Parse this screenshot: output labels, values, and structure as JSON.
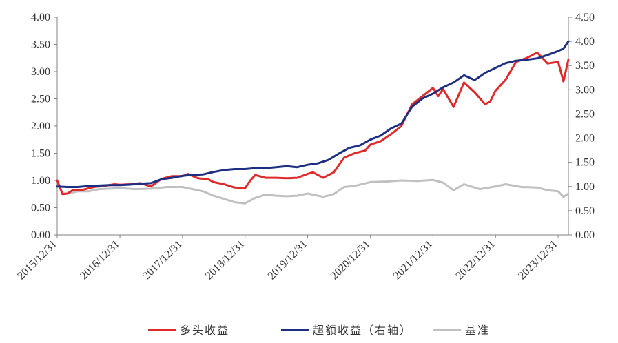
{
  "chart_data": {
    "type": "line",
    "title": "",
    "xlabel": "",
    "ylabel_left": "",
    "ylabel_right": "",
    "x_tick_labels": [
      "2015/12/31",
      "2016/12/31",
      "2017/12/31",
      "2018/12/31",
      "2019/12/31",
      "2020/12/31",
      "2021/12/31",
      "2022/12/31",
      "2023/12/31"
    ],
    "x_range": [
      "2015/12/31",
      "2024/02/29"
    ],
    "ylim_left": [
      0,
      4
    ],
    "yticks_left": [
      "0.00",
      "0.50",
      "1.00",
      "1.50",
      "2.00",
      "2.50",
      "3.00",
      "3.50",
      "4.00"
    ],
    "ylim_right": [
      0,
      4.5
    ],
    "yticks_right": [
      "0.00",
      "0.50",
      "1.00",
      "1.50",
      "2.00",
      "2.50",
      "3.00",
      "3.50",
      "4.00",
      "4.50"
    ],
    "grid": false,
    "legend_position": "bottom",
    "series": [
      {
        "name": "多头收益",
        "axis": "left",
        "color": "#e02a2a",
        "points": [
          [
            "2015/12/31",
            1.0
          ],
          [
            "2016/01/31",
            0.75
          ],
          [
            "2016/02/29",
            0.76
          ],
          [
            "2016/03/31",
            0.82
          ],
          [
            "2016/05/31",
            0.83
          ],
          [
            "2016/07/31",
            0.88
          ],
          [
            "2016/09/30",
            0.9
          ],
          [
            "2016/11/30",
            0.93
          ],
          [
            "2016/12/31",
            0.92
          ],
          [
            "2017/02/28",
            0.93
          ],
          [
            "2017/04/30",
            0.95
          ],
          [
            "2017/06/30",
            0.89
          ],
          [
            "2017/08/31",
            1.03
          ],
          [
            "2017/10/31",
            1.08
          ],
          [
            "2017/12/31",
            1.08
          ],
          [
            "2018/01/31",
            1.12
          ],
          [
            "2018/03/31",
            1.04
          ],
          [
            "2018/05/31",
            1.02
          ],
          [
            "2018/06/30",
            0.97
          ],
          [
            "2018/08/31",
            0.93
          ],
          [
            "2018/10/31",
            0.87
          ],
          [
            "2018/12/31",
            0.86
          ],
          [
            "2019/01/31",
            1.0
          ],
          [
            "2019/02/28",
            1.1
          ],
          [
            "2019/04/30",
            1.05
          ],
          [
            "2019/06/30",
            1.05
          ],
          [
            "2019/08/31",
            1.04
          ],
          [
            "2019/10/31",
            1.05
          ],
          [
            "2019/12/31",
            1.12
          ],
          [
            "2020/01/31",
            1.15
          ],
          [
            "2020/03/31",
            1.05
          ],
          [
            "2020/05/31",
            1.15
          ],
          [
            "2020/07/31",
            1.42
          ],
          [
            "2020/09/30",
            1.5
          ],
          [
            "2020/11/30",
            1.55
          ],
          [
            "2020/12/31",
            1.66
          ],
          [
            "2021/02/28",
            1.72
          ],
          [
            "2021/04/30",
            1.85
          ],
          [
            "2021/06/30",
            2.0
          ],
          [
            "2021/08/31",
            2.4
          ],
          [
            "2021/10/31",
            2.55
          ],
          [
            "2021/12/31",
            2.7
          ],
          [
            "2022/01/31",
            2.55
          ],
          [
            "2022/02/28",
            2.68
          ],
          [
            "2022/04/30",
            2.35
          ],
          [
            "2022/06/30",
            2.8
          ],
          [
            "2022/08/31",
            2.62
          ],
          [
            "2022/10/31",
            2.4
          ],
          [
            "2022/11/30",
            2.45
          ],
          [
            "2022/12/31",
            2.65
          ],
          [
            "2023/02/28",
            2.85
          ],
          [
            "2023/04/30",
            3.18
          ],
          [
            "2023/06/30",
            3.25
          ],
          [
            "2023/08/31",
            3.35
          ],
          [
            "2023/10/31",
            3.15
          ],
          [
            "2023/12/31",
            3.18
          ],
          [
            "2024/01/31",
            2.82
          ],
          [
            "2024/02/29",
            3.22
          ]
        ]
      },
      {
        "name": "超额收益（右轴）",
        "axis": "right",
        "color": "#1c2f82",
        "points": [
          [
            "2015/12/31",
            1.0
          ],
          [
            "2016/02/29",
            0.99
          ],
          [
            "2016/04/30",
            0.99
          ],
          [
            "2016/06/30",
            1.01
          ],
          [
            "2016/08/31",
            1.02
          ],
          [
            "2016/10/31",
            1.03
          ],
          [
            "2016/12/31",
            1.03
          ],
          [
            "2017/02/28",
            1.04
          ],
          [
            "2017/04/30",
            1.06
          ],
          [
            "2017/06/30",
            1.07
          ],
          [
            "2017/08/31",
            1.15
          ],
          [
            "2017/10/31",
            1.18
          ],
          [
            "2017/12/31",
            1.22
          ],
          [
            "2018/02/28",
            1.24
          ],
          [
            "2018/04/30",
            1.25
          ],
          [
            "2018/06/30",
            1.3
          ],
          [
            "2018/08/31",
            1.34
          ],
          [
            "2018/10/31",
            1.36
          ],
          [
            "2018/12/31",
            1.36
          ],
          [
            "2019/02/28",
            1.38
          ],
          [
            "2019/04/30",
            1.38
          ],
          [
            "2019/06/30",
            1.4
          ],
          [
            "2019/08/31",
            1.42
          ],
          [
            "2019/10/31",
            1.4
          ],
          [
            "2019/12/31",
            1.45
          ],
          [
            "2020/02/29",
            1.48
          ],
          [
            "2020/04/30",
            1.55
          ],
          [
            "2020/06/30",
            1.68
          ],
          [
            "2020/08/31",
            1.8
          ],
          [
            "2020/10/31",
            1.85
          ],
          [
            "2020/12/31",
            1.97
          ],
          [
            "2021/02/28",
            2.05
          ],
          [
            "2021/04/30",
            2.2
          ],
          [
            "2021/06/30",
            2.3
          ],
          [
            "2021/08/31",
            2.65
          ],
          [
            "2021/10/31",
            2.82
          ],
          [
            "2021/12/31",
            2.92
          ],
          [
            "2022/02/28",
            3.05
          ],
          [
            "2022/04/30",
            3.15
          ],
          [
            "2022/06/30",
            3.3
          ],
          [
            "2022/08/31",
            3.2
          ],
          [
            "2022/10/31",
            3.35
          ],
          [
            "2022/12/31",
            3.45
          ],
          [
            "2023/02/28",
            3.55
          ],
          [
            "2023/04/30",
            3.6
          ],
          [
            "2023/06/30",
            3.62
          ],
          [
            "2023/08/31",
            3.65
          ],
          [
            "2023/10/31",
            3.72
          ],
          [
            "2023/12/31",
            3.8
          ],
          [
            "2024/01/31",
            3.85
          ],
          [
            "2024/02/29",
            4.0
          ]
        ]
      },
      {
        "name": "基准",
        "axis": "left",
        "color": "#c0c0c0",
        "points": [
          [
            "2015/12/31",
            1.0
          ],
          [
            "2016/01/31",
            0.76
          ],
          [
            "2016/02/29",
            0.76
          ],
          [
            "2016/04/30",
            0.8
          ],
          [
            "2016/06/30",
            0.8
          ],
          [
            "2016/08/31",
            0.84
          ],
          [
            "2016/10/31",
            0.85
          ],
          [
            "2016/12/31",
            0.86
          ],
          [
            "2017/03/31",
            0.84
          ],
          [
            "2017/06/30",
            0.85
          ],
          [
            "2017/09/30",
            0.88
          ],
          [
            "2017/12/31",
            0.88
          ],
          [
            "2018/02/28",
            0.84
          ],
          [
            "2018/04/30",
            0.8
          ],
          [
            "2018/06/30",
            0.72
          ],
          [
            "2018/08/31",
            0.66
          ],
          [
            "2018/10/31",
            0.6
          ],
          [
            "2018/12/31",
            0.58
          ],
          [
            "2019/02/28",
            0.68
          ],
          [
            "2019/04/30",
            0.74
          ],
          [
            "2019/06/30",
            0.72
          ],
          [
            "2019/08/31",
            0.71
          ],
          [
            "2019/10/31",
            0.72
          ],
          [
            "2019/12/31",
            0.76
          ],
          [
            "2020/03/31",
            0.7
          ],
          [
            "2020/05/31",
            0.75
          ],
          [
            "2020/07/31",
            0.88
          ],
          [
            "2020/09/30",
            0.9
          ],
          [
            "2020/12/31",
            0.97
          ],
          [
            "2021/03/31",
            0.98
          ],
          [
            "2021/06/30",
            1.0
          ],
          [
            "2021/09/30",
            0.99
          ],
          [
            "2021/12/31",
            1.01
          ],
          [
            "2022/02/28",
            0.96
          ],
          [
            "2022/04/30",
            0.82
          ],
          [
            "2022/06/30",
            0.93
          ],
          [
            "2022/09/30",
            0.84
          ],
          [
            "2022/12/31",
            0.89
          ],
          [
            "2023/02/28",
            0.93
          ],
          [
            "2023/05/31",
            0.88
          ],
          [
            "2023/08/31",
            0.87
          ],
          [
            "2023/10/31",
            0.82
          ],
          [
            "2023/12/31",
            0.8
          ],
          [
            "2024/01/31",
            0.7
          ],
          [
            "2024/02/29",
            0.76
          ]
        ]
      }
    ]
  }
}
